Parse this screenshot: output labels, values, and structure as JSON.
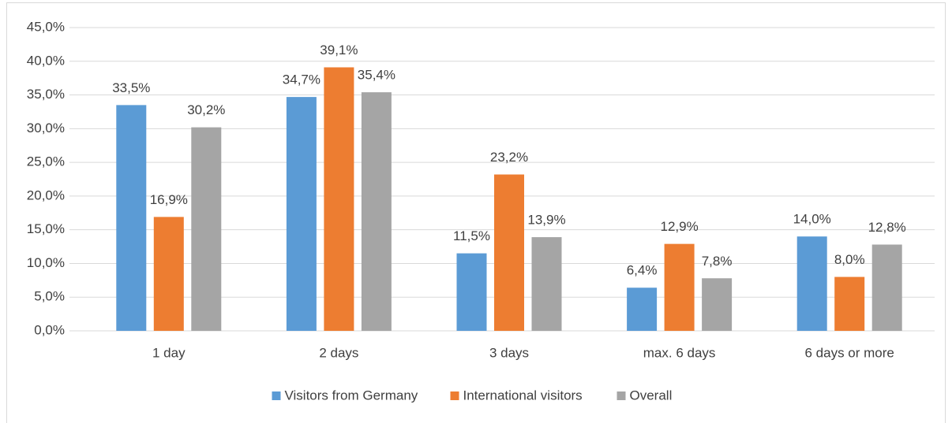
{
  "chart_data": {
    "type": "bar",
    "categories": [
      "1 day",
      "2 days",
      "3 days",
      "max. 6 days",
      "6 days or more"
    ],
    "series": [
      {
        "name": "Visitors from Germany",
        "color": "#5b9bd5",
        "values": [
          33.5,
          34.7,
          11.5,
          6.4,
          14.0
        ],
        "value_labels": [
          "33,5%",
          "34,7%",
          "11,5%",
          "6,4%",
          "14,0%"
        ]
      },
      {
        "name": "International visitors",
        "color": "#ed7d31",
        "values": [
          16.9,
          39.1,
          23.2,
          12.9,
          8.0
        ],
        "value_labels": [
          "16,9%",
          "39,1%",
          "23,2%",
          "12,9%",
          "8,0%"
        ]
      },
      {
        "name": "Overall",
        "color": "#a5a5a5",
        "values": [
          30.2,
          35.4,
          13.9,
          7.8,
          12.8
        ],
        "value_labels": [
          "30,2%",
          "35,4%",
          "13,9%",
          "7,8%",
          "12,8%"
        ]
      }
    ],
    "ylim": [
      0,
      45
    ],
    "yticks": [
      {
        "value": 0,
        "label": "0,0%"
      },
      {
        "value": 5,
        "label": "5,0%"
      },
      {
        "value": 10,
        "label": "10,0%"
      },
      {
        "value": 15,
        "label": "15,0%"
      },
      {
        "value": 20,
        "label": "20,0%"
      },
      {
        "value": 25,
        "label": "25,0%"
      },
      {
        "value": 30,
        "label": "30,0%"
      },
      {
        "value": 35,
        "label": "35,0%"
      },
      {
        "value": 40,
        "label": "40,0%"
      },
      {
        "value": 45,
        "label": "45,0%"
      }
    ],
    "grid": true,
    "legend": "bottom"
  }
}
